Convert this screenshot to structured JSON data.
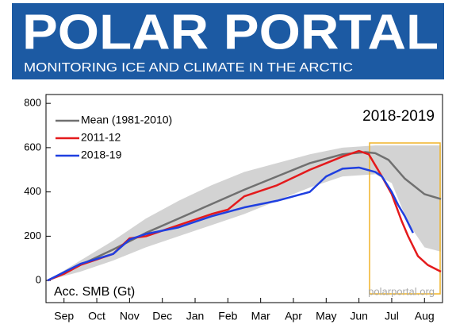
{
  "header": {
    "title": "POLAR PORTAL",
    "subtitle": "MONITORING ICE AND CLIMATE IN THE ARCTIC"
  },
  "chart_data": {
    "type": "line",
    "title": "2018-2019",
    "ylabel": "Acc. SMB (Gt)",
    "source": "polarportal.org",
    "xlim": [
      -0.05,
      12.05
    ],
    "ylim": [
      -100,
      840
    ],
    "yticks": [
      0,
      200,
      400,
      600,
      800
    ],
    "xticks": [
      {
        "value": 0.5,
        "label": "Sep"
      },
      {
        "value": 1.5,
        "label": "Oct"
      },
      {
        "value": 2.5,
        "label": "Nov"
      },
      {
        "value": 3.5,
        "label": "Dec"
      },
      {
        "value": 4.5,
        "label": "Jan"
      },
      {
        "value": 5.5,
        "label": "Feb"
      },
      {
        "value": 6.5,
        "label": "Mar"
      },
      {
        "value": 7.5,
        "label": "Apr"
      },
      {
        "value": 8.5,
        "label": "May"
      },
      {
        "value": 9.5,
        "label": "Jun"
      },
      {
        "value": 10.5,
        "label": "Jul"
      },
      {
        "value": 11.5,
        "label": "Aug"
      }
    ],
    "legend": "top-left",
    "band": {
      "color": "#d3d3d3",
      "x": [
        0,
        1,
        2,
        3,
        4,
        5,
        6,
        7,
        8,
        9,
        10,
        10.5,
        11,
        11.5,
        12
      ],
      "upper": [
        0,
        90,
        180,
        280,
        360,
        430,
        490,
        530,
        570,
        600,
        610,
        610,
        610,
        610,
        610
      ],
      "lower": [
        0,
        40,
        90,
        150,
        200,
        250,
        300,
        360,
        420,
        470,
        480,
        440,
        260,
        150,
        130
      ]
    },
    "series": [
      {
        "name": "Mean (1981-2010)",
        "color": "#707070",
        "x": [
          0,
          1,
          2,
          3,
          4,
          5,
          6,
          7,
          8,
          9,
          9.7,
          10,
          10.4,
          10.9,
          11.5,
          12
        ],
        "values": [
          0,
          70,
          140,
          215,
          280,
          345,
          410,
          470,
          530,
          570,
          580,
          575,
          545,
          460,
          390,
          368
        ]
      },
      {
        "name": "2011-12",
        "color": "#e41a1c",
        "x": [
          0,
          0.5,
          1,
          2,
          2.5,
          3,
          4,
          5,
          5.5,
          6,
          7,
          8,
          8.5,
          9,
          9.5,
          9.8,
          10,
          10.2,
          10.5,
          10.8,
          11,
          11.3,
          11.6,
          12
        ],
        "values": [
          0,
          30,
          70,
          120,
          190,
          200,
          250,
          300,
          320,
          380,
          430,
          500,
          530,
          560,
          585,
          570,
          520,
          470,
          390,
          270,
          200,
          110,
          70,
          40
        ]
      },
      {
        "name": "2018-19",
        "color": "#1f3fe0",
        "x": [
          0,
          1,
          2,
          2.5,
          3,
          4,
          5,
          6,
          7,
          8,
          8.5,
          9,
          9.5,
          10,
          10.2,
          10.5,
          10.7,
          10.9,
          11.15
        ],
        "values": [
          0,
          75,
          120,
          185,
          210,
          240,
          290,
          330,
          360,
          400,
          470,
          505,
          510,
          490,
          470,
          400,
          340,
          290,
          215
        ]
      }
    ]
  }
}
